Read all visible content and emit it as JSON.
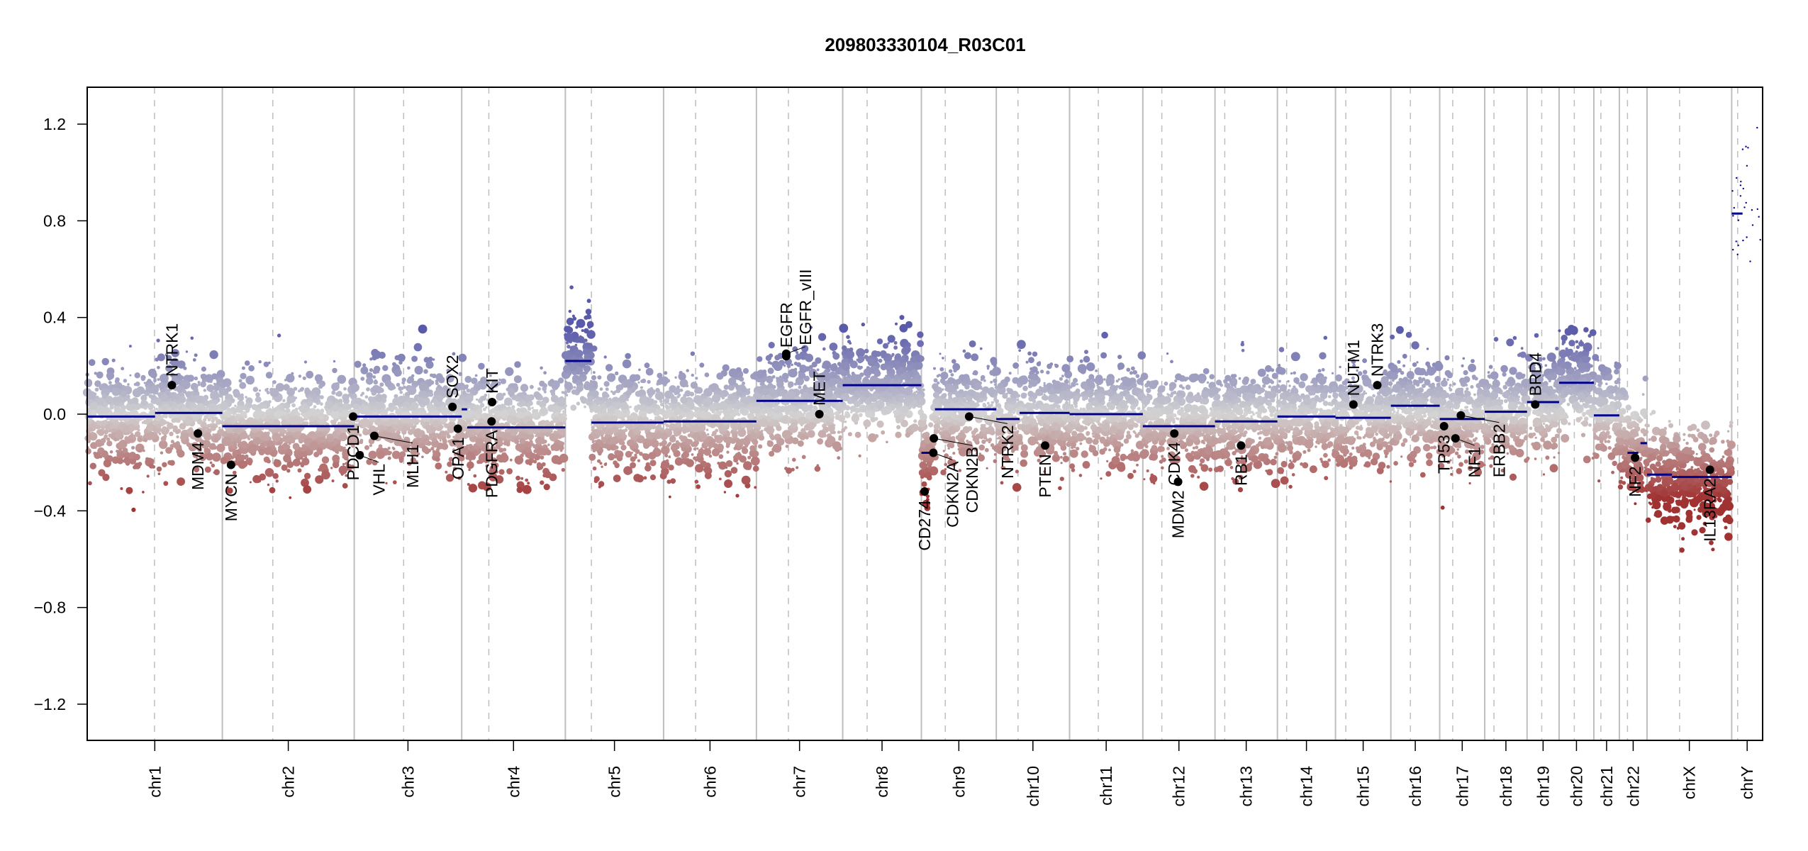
{
  "chart_data": {
    "type": "scatter",
    "title": "209803330104_R03C01",
    "xlabel": "",
    "ylabel": "",
    "ylim": [
      -1.35,
      1.35
    ],
    "yticks": [
      1.2,
      0.8,
      0.4,
      0.0,
      -0.4,
      -0.8,
      -1.2
    ],
    "ytick_labels": [
      "1.2",
      "0.8",
      "0.4",
      "0.0",
      "−0.4",
      "−0.8",
      "−1.2"
    ],
    "grid": false,
    "legend": "none",
    "colors": {
      "gain": "#5a5aaa",
      "neutral": "#d3d3d3",
      "loss": "#a03232",
      "segment": "#00008b",
      "gene_point": "#000000",
      "chrom_boundary": "#bebebe",
      "centromere": "#bebebe"
    },
    "genome_length_mb": 3100,
    "chromosomes": [
      {
        "name": "chr1",
        "start": 0,
        "end": 249,
        "centromere": 124,
        "segments": [
          {
            "from": 0,
            "to": 125,
            "value": -0.01
          },
          {
            "from": 125,
            "to": 249,
            "value": 0.005
          }
        ]
      },
      {
        "name": "chr2",
        "start": 249,
        "end": 492,
        "centromere": 342,
        "segments": [
          {
            "from": 249,
            "to": 492,
            "value": -0.05
          }
        ]
      },
      {
        "name": "chr3",
        "start": 492,
        "end": 690,
        "centromere": 583,
        "segments": [
          {
            "from": 492,
            "to": 690,
            "value": -0.01
          }
        ]
      },
      {
        "name": "chr4",
        "start": 690,
        "end": 881,
        "centromere": 740,
        "segments": [
          {
            "from": 690,
            "to": 700,
            "value": 0.02
          },
          {
            "from": 700,
            "to": 881,
            "value": -0.055
          }
        ]
      },
      {
        "name": "chr5",
        "start": 881,
        "end": 1062,
        "centromere": 929,
        "segments": [
          {
            "from": 881,
            "to": 929,
            "value": 0.22
          },
          {
            "from": 929,
            "to": 1062,
            "value": -0.035
          }
        ]
      },
      {
        "name": "chr6",
        "start": 1062,
        "end": 1233,
        "centromere": 1121,
        "segments": [
          {
            "from": 1062,
            "to": 1233,
            "value": -0.03
          }
        ]
      },
      {
        "name": "chr7",
        "start": 1233,
        "end": 1392,
        "centromere": 1292,
        "segments": [
          {
            "from": 1233,
            "to": 1392,
            "value": 0.055
          }
        ]
      },
      {
        "name": "chr8",
        "start": 1392,
        "end": 1537,
        "centromere": 1437,
        "segments": [
          {
            "from": 1392,
            "to": 1537,
            "value": 0.12
          }
        ]
      },
      {
        "name": "chr9",
        "start": 1537,
        "end": 1675,
        "centromere": 1581,
        "segments": [
          {
            "from": 1537,
            "to": 1560,
            "value": -0.16
          },
          {
            "from": 1562,
            "to": 1675,
            "value": 0.02
          }
        ]
      },
      {
        "name": "chr10",
        "start": 1675,
        "end": 1810,
        "centromere": 1715,
        "segments": [
          {
            "from": 1675,
            "to": 1718,
            "value": -0.02
          },
          {
            "from": 1718,
            "to": 1810,
            "value": 0.005
          }
        ]
      },
      {
        "name": "chr11",
        "start": 1810,
        "end": 1945,
        "centromere": 1863,
        "segments": [
          {
            "from": 1810,
            "to": 1945,
            "value": 0.0
          }
        ]
      },
      {
        "name": "chr12",
        "start": 1945,
        "end": 2078,
        "centromere": 1980,
        "segments": [
          {
            "from": 1945,
            "to": 2078,
            "value": -0.05
          }
        ]
      },
      {
        "name": "chr13",
        "start": 2078,
        "end": 2193,
        "centromere": 2096,
        "segments": [
          {
            "from": 2078,
            "to": 2193,
            "value": -0.03
          }
        ]
      },
      {
        "name": "chr14",
        "start": 2193,
        "end": 2300,
        "centromere": 2210,
        "segments": [
          {
            "from": 2193,
            "to": 2300,
            "value": -0.01
          }
        ]
      },
      {
        "name": "chr15",
        "start": 2300,
        "end": 2402,
        "centromere": 2319,
        "segments": [
          {
            "from": 2300,
            "to": 2402,
            "value": -0.015
          }
        ]
      },
      {
        "name": "chr16",
        "start": 2402,
        "end": 2492,
        "centromere": 2438,
        "segments": [
          {
            "from": 2402,
            "to": 2492,
            "value": 0.035
          }
        ]
      },
      {
        "name": "chr17",
        "start": 2492,
        "end": 2575,
        "centromere": 2516,
        "segments": [
          {
            "from": 2492,
            "to": 2575,
            "value": -0.02
          }
        ]
      },
      {
        "name": "chr18",
        "start": 2575,
        "end": 2653,
        "centromere": 2592,
        "segments": [
          {
            "from": 2575,
            "to": 2653,
            "value": 0.01
          }
        ]
      },
      {
        "name": "chr19",
        "start": 2653,
        "end": 2712,
        "centromere": 2680,
        "segments": [
          {
            "from": 2653,
            "to": 2712,
            "value": 0.05
          }
        ]
      },
      {
        "name": "chr20",
        "start": 2712,
        "end": 2776,
        "centromere": 2740,
        "segments": [
          {
            "from": 2712,
            "to": 2776,
            "value": 0.13
          }
        ]
      },
      {
        "name": "chr21",
        "start": 2776,
        "end": 2823,
        "centromere": 2789,
        "segments": [
          {
            "from": 2776,
            "to": 2823,
            "value": -0.005
          }
        ]
      },
      {
        "name": "chr22",
        "start": 2823,
        "end": 2874,
        "centromere": 2838,
        "segments": [
          {
            "from": 2838,
            "to": 2858,
            "value": -0.16
          },
          {
            "from": 2862,
            "to": 2874,
            "value": -0.12
          }
        ]
      },
      {
        "name": "chrX",
        "start": 2874,
        "end": 3030,
        "centromere": 2934,
        "segments": [
          {
            "from": 2874,
            "to": 2920,
            "value": -0.25
          },
          {
            "from": 2920,
            "to": 3030,
            "value": -0.26
          }
        ]
      },
      {
        "name": "chrY",
        "start": 3030,
        "end": 3087,
        "centromere": 3041,
        "segments": [
          {
            "from": 3030,
            "to": 3050,
            "value": 0.83
          }
        ]
      }
    ],
    "genes": [
      {
        "name": "NTRK1",
        "pos": 156,
        "value": 0.12,
        "label_side": "up"
      },
      {
        "name": "MDM4",
        "pos": 204,
        "value": -0.08,
        "label_side": "down"
      },
      {
        "name": "MYCN",
        "pos": 265,
        "value": -0.21,
        "label_side": "down"
      },
      {
        "name": "PDCD1",
        "pos": 490,
        "value": -0.01,
        "label_side": "down"
      },
      {
        "name": "VHL",
        "pos": 502,
        "value": -0.17,
        "label_side": "down"
      },
      {
        "name": "MLH1",
        "pos": 529,
        "value": -0.09,
        "label_side": "down"
      },
      {
        "name": "SOX2",
        "pos": 673,
        "value": 0.03,
        "label_side": "up"
      },
      {
        "name": "OPA1",
        "pos": 683,
        "value": -0.06,
        "label_side": "down"
      },
      {
        "name": "KIT",
        "pos": 746,
        "value": 0.05,
        "label_side": "up"
      },
      {
        "name": "PDGFRA",
        "pos": 745,
        "value": -0.03,
        "label_side": "down"
      },
      {
        "name": "EGFR",
        "pos": 1288,
        "value": 0.24,
        "label_side": "up"
      },
      {
        "name": "EGFR_vIII",
        "pos": 1288,
        "value": 0.25,
        "label_side": "up"
      },
      {
        "name": "MET",
        "pos": 1349,
        "value": 0.0,
        "label_side": "up"
      },
      {
        "name": "CD274",
        "pos": 1543,
        "value": -0.32,
        "label_side": "down"
      },
      {
        "name": "CDKN2A",
        "pos": 1559,
        "value": -0.16,
        "label_side": "down"
      },
      {
        "name": "CDKN2B",
        "pos": 1560,
        "value": -0.1,
        "label_side": "down"
      },
      {
        "name": "NTRK2",
        "pos": 1625,
        "value": -0.01,
        "label_side": "down"
      },
      {
        "name": "PTEN",
        "pos": 1765,
        "value": -0.13,
        "label_side": "down"
      },
      {
        "name": "CDK4",
        "pos": 2003,
        "value": -0.08,
        "label_side": "down"
      },
      {
        "name": "MDM2",
        "pos": 2010,
        "value": -0.28,
        "label_side": "down"
      },
      {
        "name": "RB1",
        "pos": 2126,
        "value": -0.13,
        "label_side": "down"
      },
      {
        "name": "NUTM1",
        "pos": 2333,
        "value": 0.04,
        "label_side": "up"
      },
      {
        "name": "NTRK3",
        "pos": 2377,
        "value": 0.12,
        "label_side": "up"
      },
      {
        "name": "TP53",
        "pos": 2500,
        "value": -0.05,
        "label_side": "down"
      },
      {
        "name": "NF1",
        "pos": 2521,
        "value": -0.1,
        "label_side": "down"
      },
      {
        "name": "ERBB2",
        "pos": 2531,
        "value": -0.005,
        "label_side": "down"
      },
      {
        "name": "BRD4",
        "pos": 2668,
        "value": 0.04,
        "label_side": "up"
      },
      {
        "name": "NF2",
        "pos": 2852,
        "value": -0.18,
        "label_side": "down"
      },
      {
        "name": "IL13RA2",
        "pos": 2990,
        "value": -0.23,
        "label_side": "down"
      }
    ]
  }
}
